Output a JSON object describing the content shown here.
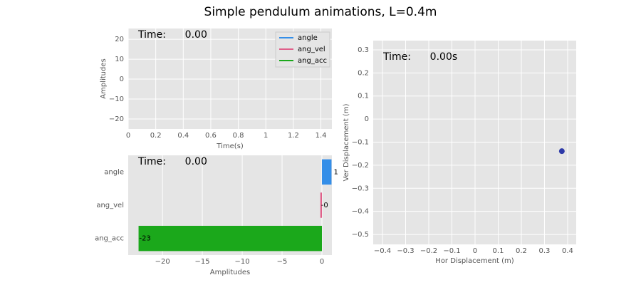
{
  "title": "Simple pendulum animations, L=0.4m",
  "chart_data": [
    {
      "type": "line",
      "annotation": "Time:      0.00",
      "xlabel": "Time(s)",
      "ylabel": "Amplitudes",
      "x": [],
      "series": [
        {
          "name": "angle",
          "color": "#348ee8",
          "values": []
        },
        {
          "name": "ang_vel",
          "color": "#e0608a",
          "values": []
        },
        {
          "name": "ang_acc",
          "color": "#1ba81b",
          "values": []
        }
      ],
      "xlim": [
        0,
        1.48
      ],
      "xticks": [
        0,
        0.2,
        0.4,
        0.6,
        0.8,
        1.0,
        1.2,
        1.4
      ],
      "ylim": [
        -25,
        25.4
      ],
      "yticks": [
        {
          "value": -20,
          "label": "−20"
        },
        {
          "value": -10,
          "label": "−10"
        },
        0,
        10,
        20
      ],
      "grid": true,
      "legend": "upper right"
    },
    {
      "type": "barh",
      "annotation": "Time:      0.00",
      "xlabel": "Amplitudes",
      "categories": [
        "angle",
        "ang_vel",
        "ang_acc"
      ],
      "values": [
        1.2,
        -0.2,
        -23
      ],
      "value_labels": [
        "1",
        "-0",
        "-23"
      ],
      "colors": [
        "#348ee8",
        "#e0608a",
        "#1ba81b"
      ],
      "xlim": [
        -24.3,
        1.25
      ],
      "xticks": [
        {
          "value": -20,
          "label": "−20"
        },
        {
          "value": -15,
          "label": "−15"
        },
        {
          "value": -10,
          "label": "−10"
        },
        {
          "value": -5,
          "label": "−5"
        },
        0
      ],
      "grid": true
    },
    {
      "type": "scatter",
      "annotation": "Time:      0.00s",
      "xlabel": "Hor Displacement (m)",
      "ylabel": "Ver Displacement (m)",
      "x": [
        0.375
      ],
      "values": [
        -0.139
      ],
      "color": "#2e3aa8",
      "xlim": [
        -0.44,
        0.437
      ],
      "xticks": [
        {
          "value": -0.4,
          "label": "−0.4"
        },
        {
          "value": -0.3,
          "label": "−0.3"
        },
        {
          "value": -0.2,
          "label": "−0.2"
        },
        {
          "value": -0.1,
          "label": "−0.1"
        },
        0.0,
        0.1,
        0.2,
        0.3,
        0.4
      ],
      "ylim": [
        -0.543,
        0.34
      ],
      "yticks": [
        {
          "value": -0.5,
          "label": "−0.5"
        },
        {
          "value": -0.4,
          "label": "−0.4"
        },
        {
          "value": -0.3,
          "label": "−0.3"
        },
        {
          "value": -0.2,
          "label": "−0.2"
        },
        {
          "value": -0.1,
          "label": "−0.1"
        },
        0.0,
        0.1,
        0.2,
        0.3
      ],
      "grid": true
    }
  ]
}
